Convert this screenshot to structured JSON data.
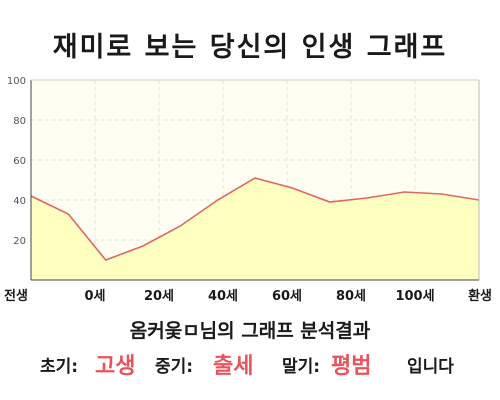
{
  "title": "재미로 보는 당신의 인생 그래프",
  "caption": "옴커웆ㅁ님의 그래프 분석결과",
  "summary": {
    "early_label": "초기:",
    "early_value": "고생",
    "middle_label": "중기:",
    "middle_value": "출세",
    "late_label": "말기:",
    "late_value": "평범",
    "suffix": "입니다"
  },
  "colors": {
    "fill": "#ffffbf",
    "line": "#e06666",
    "highlight": "#e8545c",
    "plot_background": "#fefef2",
    "grid": "#e6e6cf",
    "axis": "#444444"
  },
  "chart_data": {
    "type": "area",
    "x_labels": [
      "전생",
      "0세",
      "20세",
      "40세",
      "60세",
      "80세",
      "100세",
      "환생"
    ],
    "y_ticks": [
      "20",
      "40",
      "60",
      "80",
      "100"
    ],
    "ylim": [
      0,
      100
    ],
    "grid": true,
    "values": [
      42,
      33,
      10,
      17,
      27,
      40,
      51,
      46,
      39,
      41,
      44,
      43,
      40
    ]
  }
}
